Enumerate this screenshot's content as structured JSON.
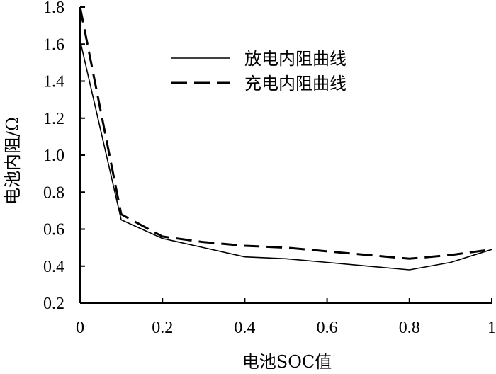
{
  "chart_data": {
    "type": "line",
    "xlabel": "电池SOC值",
    "ylabel": "电池内阻/Ω",
    "xlim": [
      0,
      1
    ],
    "ylim": [
      0.2,
      1.8
    ],
    "xticks": [
      0,
      0.2,
      0.4,
      0.6,
      0.8,
      1
    ],
    "xtick_labels": [
      "0",
      "0.2",
      "0.4",
      "0.6",
      "0.8",
      "1"
    ],
    "yticks": [
      0.2,
      0.4,
      0.6,
      0.8,
      1.0,
      1.2,
      1.4,
      1.6,
      1.8
    ],
    "ytick_labels": [
      "0.2",
      "0.4",
      "0.6",
      "0.8",
      "1.0",
      "1.2",
      "1.4",
      "1.6",
      "1.8"
    ],
    "grid": false,
    "legend_position": "top-right",
    "x": [
      0,
      0.1,
      0.2,
      0.3,
      0.4,
      0.5,
      0.6,
      0.7,
      0.8,
      0.9,
      1.0
    ],
    "series": [
      {
        "name": "放电内阻曲线",
        "style": "solid",
        "color": "#000000",
        "values": [
          1.62,
          0.65,
          0.55,
          0.5,
          0.45,
          0.44,
          0.42,
          0.4,
          0.38,
          0.42,
          0.49
        ]
      },
      {
        "name": "充电内阻曲线",
        "style": "dashed",
        "color": "#000000",
        "values": [
          1.8,
          0.68,
          0.56,
          0.53,
          0.51,
          0.5,
          0.48,
          0.46,
          0.44,
          0.46,
          0.49
        ]
      }
    ]
  }
}
